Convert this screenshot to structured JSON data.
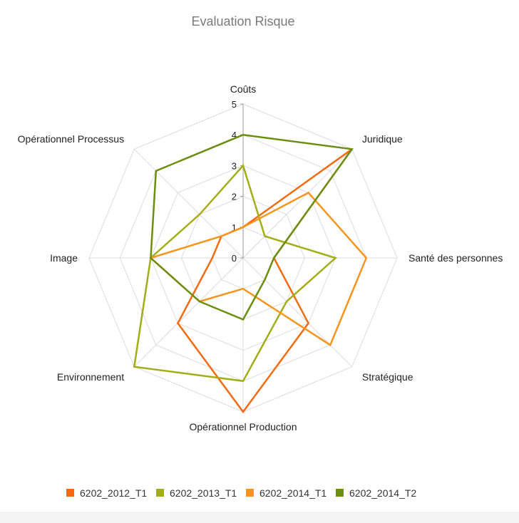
{
  "chart_data": {
    "type": "radar",
    "title": "Evaluation Risque",
    "axes": [
      "Coûts",
      "Juridique",
      "Santé des personnes",
      "Stratégique",
      "Opérationnel Production",
      "Environnement",
      "Image",
      "Opérationnel Processus"
    ],
    "r_ticks": [
      "0",
      "1",
      "2",
      "3",
      "4",
      "5"
    ],
    "rlim": [
      0,
      5
    ],
    "grid": true,
    "legend_position": "bottom",
    "series": [
      {
        "name": "6202_2012_T1",
        "color": "#f36a10",
        "values": [
          1,
          5,
          1,
          3,
          5,
          3,
          1,
          1
        ]
      },
      {
        "name": "6202_2013_T1",
        "color": "#a3ad16",
        "values": [
          3,
          1,
          3,
          2,
          4,
          5,
          3,
          2
        ]
      },
      {
        "name": "6202_2014_T1",
        "color": "#f7941d",
        "values": [
          1,
          3,
          4,
          4,
          1,
          2,
          3,
          1
        ]
      },
      {
        "name": "6202_2014_T2",
        "color": "#6a8f10",
        "values": [
          4,
          5,
          1,
          1,
          2,
          2,
          3,
          4
        ]
      }
    ]
  }
}
